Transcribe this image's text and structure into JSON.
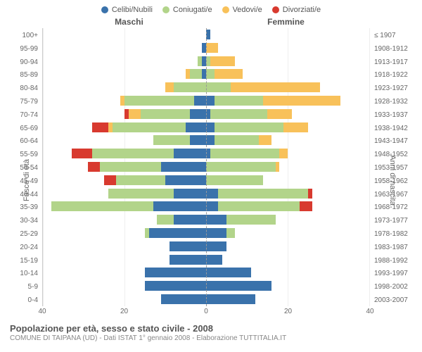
{
  "legend": [
    {
      "label": "Celibi/Nubili",
      "color": "#3a72ab"
    },
    {
      "label": "Coniugati/e",
      "color": "#b2d48a"
    },
    {
      "label": "Vedovi/e",
      "color": "#f8c15a"
    },
    {
      "label": "Divorziati/e",
      "color": "#d83a2f"
    }
  ],
  "gender": {
    "male": "Maschi",
    "female": "Femmine"
  },
  "axis_left_title": "Fasce di età",
  "axis_right_title": "Anni di nascita",
  "age_labels": [
    "100+",
    "95-99",
    "90-94",
    "85-89",
    "80-84",
    "75-79",
    "70-74",
    "65-69",
    "60-64",
    "55-59",
    "50-54",
    "45-49",
    "40-44",
    "35-39",
    "30-34",
    "25-29",
    "20-24",
    "15-19",
    "10-14",
    "5-9",
    "0-4"
  ],
  "birth_labels": [
    "≤ 1907",
    "1908-1912",
    "1913-1917",
    "1918-1922",
    "1923-1927",
    "1928-1932",
    "1933-1937",
    "1938-1942",
    "1943-1947",
    "1948-1952",
    "1953-1957",
    "1958-1962",
    "1963-1967",
    "1968-1972",
    "1973-1977",
    "1978-1982",
    "1983-1987",
    "1988-1992",
    "1993-1997",
    "1998-2002",
    "2003-2007"
  ],
  "xmax": 40,
  "xticks": [
    40,
    20,
    0,
    20,
    40
  ],
  "title": "Popolazione per età, sesso e stato civile - 2008",
  "subtitle": "COMUNE DI TAIPANA (UD) - Dati ISTAT 1° gennaio 2008 - Elaborazione TUTTITALIA.IT",
  "rows": [
    {
      "m": {
        "cel": 0,
        "con": 0,
        "ved": 0,
        "div": 0
      },
      "f": {
        "cel": 1,
        "con": 0,
        "ved": 0,
        "div": 0
      }
    },
    {
      "m": {
        "cel": 1,
        "con": 0,
        "ved": 0,
        "div": 0
      },
      "f": {
        "cel": 0,
        "con": 0,
        "ved": 3,
        "div": 0
      }
    },
    {
      "m": {
        "cel": 1,
        "con": 1,
        "ved": 0,
        "div": 0
      },
      "f": {
        "cel": 0,
        "con": 1,
        "ved": 6,
        "div": 0
      }
    },
    {
      "m": {
        "cel": 1,
        "con": 3,
        "ved": 1,
        "div": 0
      },
      "f": {
        "cel": 0,
        "con": 2,
        "ved": 7,
        "div": 0
      }
    },
    {
      "m": {
        "cel": 0,
        "con": 8,
        "ved": 2,
        "div": 0
      },
      "f": {
        "cel": 0,
        "con": 6,
        "ved": 22,
        "div": 0
      }
    },
    {
      "m": {
        "cel": 3,
        "con": 17,
        "ved": 1,
        "div": 0
      },
      "f": {
        "cel": 2,
        "con": 12,
        "ved": 19,
        "div": 0
      }
    },
    {
      "m": {
        "cel": 4,
        "con": 12,
        "ved": 3,
        "div": 1
      },
      "f": {
        "cel": 1,
        "con": 14,
        "ved": 6,
        "div": 0
      }
    },
    {
      "m": {
        "cel": 5,
        "con": 18,
        "ved": 1,
        "div": 4
      },
      "f": {
        "cel": 2,
        "con": 17,
        "ved": 6,
        "div": 0
      }
    },
    {
      "m": {
        "cel": 4,
        "con": 9,
        "ved": 0,
        "div": 0
      },
      "f": {
        "cel": 2,
        "con": 11,
        "ved": 3,
        "div": 0
      }
    },
    {
      "m": {
        "cel": 8,
        "con": 20,
        "ved": 0,
        "div": 5
      },
      "f": {
        "cel": 1,
        "con": 17,
        "ved": 2,
        "div": 0
      }
    },
    {
      "m": {
        "cel": 11,
        "con": 15,
        "ved": 0,
        "div": 3
      },
      "f": {
        "cel": 0,
        "con": 17,
        "ved": 1,
        "div": 0
      }
    },
    {
      "m": {
        "cel": 10,
        "con": 12,
        "ved": 0,
        "div": 3
      },
      "f": {
        "cel": 0,
        "con": 14,
        "ved": 0,
        "div": 0
      }
    },
    {
      "m": {
        "cel": 8,
        "con": 16,
        "ved": 0,
        "div": 0
      },
      "f": {
        "cel": 3,
        "con": 22,
        "ved": 0,
        "div": 1
      }
    },
    {
      "m": {
        "cel": 13,
        "con": 25,
        "ved": 0,
        "div": 0
      },
      "f": {
        "cel": 3,
        "con": 20,
        "ved": 0,
        "div": 3
      }
    },
    {
      "m": {
        "cel": 8,
        "con": 4,
        "ved": 0,
        "div": 0
      },
      "f": {
        "cel": 5,
        "con": 12,
        "ved": 0,
        "div": 0
      }
    },
    {
      "m": {
        "cel": 14,
        "con": 1,
        "ved": 0,
        "div": 0
      },
      "f": {
        "cel": 5,
        "con": 2,
        "ved": 0,
        "div": 0
      }
    },
    {
      "m": {
        "cel": 9,
        "con": 0,
        "ved": 0,
        "div": 0
      },
      "f": {
        "cel": 5,
        "con": 0,
        "ved": 0,
        "div": 0
      }
    },
    {
      "m": {
        "cel": 9,
        "con": 0,
        "ved": 0,
        "div": 0
      },
      "f": {
        "cel": 4,
        "con": 0,
        "ved": 0,
        "div": 0
      }
    },
    {
      "m": {
        "cel": 15,
        "con": 0,
        "ved": 0,
        "div": 0
      },
      "f": {
        "cel": 11,
        "con": 0,
        "ved": 0,
        "div": 0
      }
    },
    {
      "m": {
        "cel": 15,
        "con": 0,
        "ved": 0,
        "div": 0
      },
      "f": {
        "cel": 16,
        "con": 0,
        "ved": 0,
        "div": 0
      }
    },
    {
      "m": {
        "cel": 11,
        "con": 0,
        "ved": 0,
        "div": 0
      },
      "f": {
        "cel": 12,
        "con": 0,
        "ved": 0,
        "div": 0
      }
    }
  ],
  "colors": {
    "cel": "#3a72ab",
    "con": "#b2d48a",
    "ved": "#f8c15a",
    "div": "#d83a2f"
  }
}
